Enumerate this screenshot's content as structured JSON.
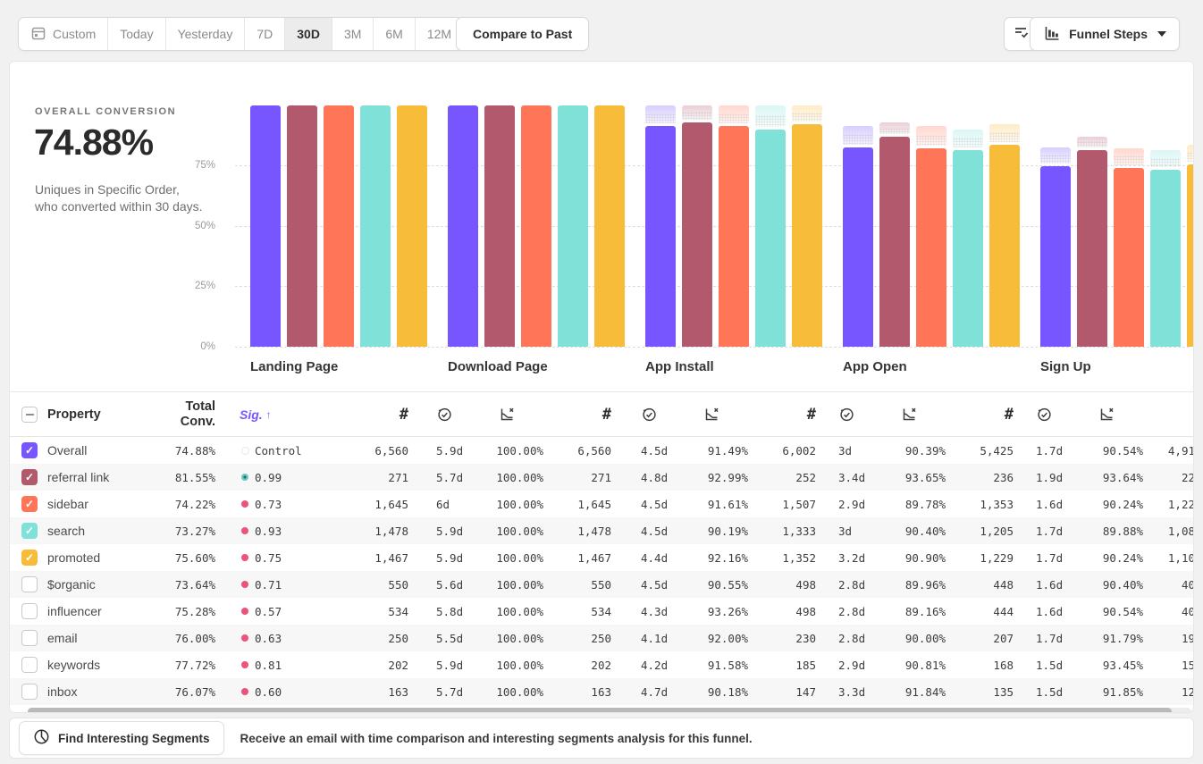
{
  "toolbar": {
    "date_ranges": [
      {
        "label": "Custom",
        "selected": false,
        "icon": "calendar-icon"
      },
      {
        "label": "Today",
        "selected": false
      },
      {
        "label": "Yesterday",
        "selected": false
      },
      {
        "label": "7D",
        "selected": false
      },
      {
        "label": "30D",
        "selected": true
      },
      {
        "label": "3M",
        "selected": false
      },
      {
        "label": "6M",
        "selected": false
      },
      {
        "label": "12M",
        "selected": false
      }
    ],
    "compare_label": "Compare to Past",
    "view_selector": {
      "label": "Funnel Steps"
    }
  },
  "summary": {
    "label": "OVERALL CONVERSION",
    "value": "74.88%",
    "description": "Uniques in Specific Order, who converted within 30 days."
  },
  "chart_data": {
    "type": "bar",
    "categories": [
      "Landing Page",
      "Download Page",
      "App Install",
      "App Open",
      "Sign Up"
    ],
    "series": [
      {
        "name": "Overall",
        "color": "#7856FF",
        "values": [
          100,
          100,
          91.49,
          82.7,
          74.88
        ]
      },
      {
        "name": "referral link",
        "color": "#B2596E",
        "values": [
          100,
          100,
          92.99,
          87.08,
          81.55
        ]
      },
      {
        "name": "sidebar",
        "color": "#FF7557",
        "values": [
          100,
          100,
          91.61,
          82.25,
          74.22
        ]
      },
      {
        "name": "search",
        "color": "#80E1D9",
        "values": [
          100,
          100,
          90.19,
          81.53,
          73.27
        ]
      },
      {
        "name": "promoted",
        "color": "#F8BC3B",
        "values": [
          100,
          100,
          92.16,
          83.78,
          75.6
        ]
      }
    ],
    "ylabel": "",
    "xlabel": "",
    "ylim": [
      0,
      100
    ],
    "yticks": [
      "75%",
      "50%",
      "25%",
      "0%"
    ],
    "grid": "dashed-horizontal",
    "note": "light hatched caps above bars show previous-step level"
  },
  "table": {
    "header": {
      "property": "Property",
      "total_conv_line1": "Total",
      "total_conv_line2": "Conv.",
      "sig": "Sig.",
      "sort_arrow": "↑",
      "count_symbol": "#"
    },
    "rows": [
      {
        "name": "Overall",
        "checked": true,
        "color": "#7856FF",
        "total": "74.88%",
        "sig": {
          "type": "control",
          "value": "Control"
        },
        "count": "6,560",
        "steps": [
          [
            "5.9d",
            "100.00%",
            "6,560"
          ],
          [
            "4.5d",
            "91.49%",
            "6,002"
          ],
          [
            "3d",
            "90.39%",
            "5,425"
          ],
          [
            "1.7d",
            "90.54%",
            "4,91"
          ]
        ]
      },
      {
        "name": "referral link",
        "checked": true,
        "color": "#B2596E",
        "total": "81.55%",
        "sig": {
          "type": "high",
          "value": "0.99"
        },
        "count": "271",
        "steps": [
          [
            "5.7d",
            "100.00%",
            "271"
          ],
          [
            "4.8d",
            "92.99%",
            "252"
          ],
          [
            "3.4d",
            "93.65%",
            "236"
          ],
          [
            "1.9d",
            "93.64%",
            "22"
          ]
        ]
      },
      {
        "name": "sidebar",
        "checked": true,
        "color": "#FF7557",
        "total": "74.22%",
        "sig": {
          "type": "low",
          "value": "0.73"
        },
        "count": "1,645",
        "steps": [
          [
            "6d",
            "100.00%",
            "1,645"
          ],
          [
            "4.5d",
            "91.61%",
            "1,507"
          ],
          [
            "2.9d",
            "89.78%",
            "1,353"
          ],
          [
            "1.6d",
            "90.24%",
            "1,22"
          ]
        ]
      },
      {
        "name": "search",
        "checked": true,
        "color": "#80E1D9",
        "total": "73.27%",
        "sig": {
          "type": "low",
          "value": "0.93"
        },
        "count": "1,478",
        "steps": [
          [
            "5.9d",
            "100.00%",
            "1,478"
          ],
          [
            "4.5d",
            "90.19%",
            "1,333"
          ],
          [
            "3d",
            "90.40%",
            "1,205"
          ],
          [
            "1.7d",
            "89.88%",
            "1,08"
          ]
        ]
      },
      {
        "name": "promoted",
        "checked": true,
        "color": "#F8BC3B",
        "total": "75.60%",
        "sig": {
          "type": "low",
          "value": "0.75"
        },
        "count": "1,467",
        "steps": [
          [
            "5.9d",
            "100.00%",
            "1,467"
          ],
          [
            "4.4d",
            "92.16%",
            "1,352"
          ],
          [
            "3.2d",
            "90.90%",
            "1,229"
          ],
          [
            "1.7d",
            "90.24%",
            "1,10"
          ]
        ]
      },
      {
        "name": "$organic",
        "checked": false,
        "color": null,
        "total": "73.64%",
        "sig": {
          "type": "low",
          "value": "0.71"
        },
        "count": "550",
        "steps": [
          [
            "5.6d",
            "100.00%",
            "550"
          ],
          [
            "4.5d",
            "90.55%",
            "498"
          ],
          [
            "2.8d",
            "89.96%",
            "448"
          ],
          [
            "1.6d",
            "90.40%",
            "40"
          ]
        ]
      },
      {
        "name": "influencer",
        "checked": false,
        "color": null,
        "total": "75.28%",
        "sig": {
          "type": "low",
          "value": "0.57"
        },
        "count": "534",
        "steps": [
          [
            "5.8d",
            "100.00%",
            "534"
          ],
          [
            "4.3d",
            "93.26%",
            "498"
          ],
          [
            "2.8d",
            "89.16%",
            "444"
          ],
          [
            "1.6d",
            "90.54%",
            "40"
          ]
        ]
      },
      {
        "name": "email",
        "checked": false,
        "color": null,
        "total": "76.00%",
        "sig": {
          "type": "low",
          "value": "0.63"
        },
        "count": "250",
        "steps": [
          [
            "5.5d",
            "100.00%",
            "250"
          ],
          [
            "4.1d",
            "92.00%",
            "230"
          ],
          [
            "2.8d",
            "90.00%",
            "207"
          ],
          [
            "1.7d",
            "91.79%",
            "19"
          ]
        ]
      },
      {
        "name": "keywords",
        "checked": false,
        "color": null,
        "total": "77.72%",
        "sig": {
          "type": "low",
          "value": "0.81"
        },
        "count": "202",
        "steps": [
          [
            "5.9d",
            "100.00%",
            "202"
          ],
          [
            "4.2d",
            "91.58%",
            "185"
          ],
          [
            "2.9d",
            "90.81%",
            "168"
          ],
          [
            "1.5d",
            "93.45%",
            "15"
          ]
        ]
      },
      {
        "name": "inbox",
        "checked": false,
        "color": null,
        "total": "76.07%",
        "sig": {
          "type": "low",
          "value": "0.60"
        },
        "count": "163",
        "steps": [
          [
            "5.7d",
            "100.00%",
            "163"
          ],
          [
            "4.7d",
            "90.18%",
            "147"
          ],
          [
            "3.3d",
            "91.84%",
            "135"
          ],
          [
            "1.5d",
            "91.85%",
            "12"
          ]
        ]
      }
    ]
  },
  "footer": {
    "button_label": "Find Interesting Segments",
    "message": "Receive an email with time comparison and interesting segments analysis for this funnel."
  },
  "colors": {
    "accent_purple": "#7856FF",
    "sig_high_dot": "#6cc7c0",
    "sig_low_dot": "#ec527a",
    "row_stripe": "#f7f7f8",
    "selected_range_bg": "#ececec"
  }
}
